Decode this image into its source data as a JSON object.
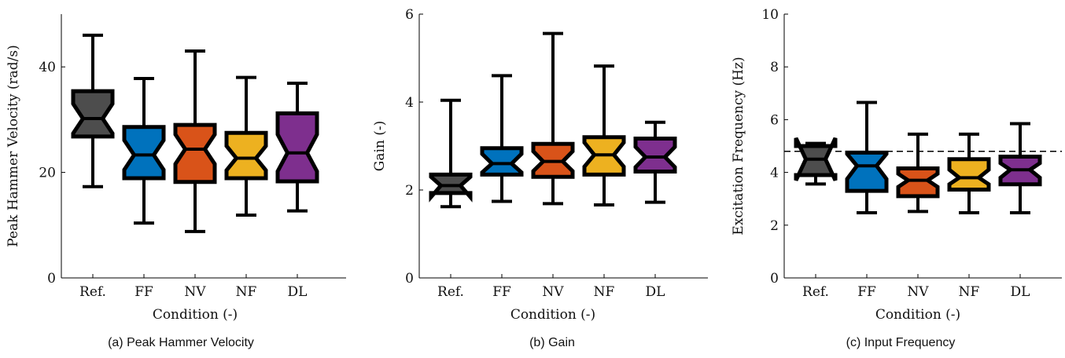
{
  "chart_data": [
    {
      "type": "box",
      "caption": "(a) Peak Hammer Velocity",
      "xlabel": "Condition (-)",
      "ylabel": "Peak Hammer Velocity (rad/s)",
      "ylim": [
        0,
        50
      ],
      "yticks": [
        0,
        20,
        40
      ],
      "categories": [
        "Ref.",
        "FF",
        "NV",
        "NF",
        "DL"
      ],
      "colors": [
        "#4d4d4d",
        "#0072bd",
        "#d95319",
        "#edb120",
        "#7e2f8e"
      ],
      "boxes": [
        {
          "whisker_low": 17.3,
          "q1": 26.8,
          "median": 30.2,
          "q3": 35.4,
          "whisker_high": 46.0,
          "notch_low": 27.4,
          "notch_high": 33.0
        },
        {
          "whisker_low": 10.4,
          "q1": 18.9,
          "median": 23.3,
          "q3": 28.6,
          "whisker_high": 37.8,
          "notch_low": 20.5,
          "notch_high": 26.1
        },
        {
          "whisker_low": 8.8,
          "q1": 18.2,
          "median": 24.4,
          "q3": 29.0,
          "whisker_high": 43.0,
          "notch_low": 21.6,
          "notch_high": 27.2
        },
        {
          "whisker_low": 11.9,
          "q1": 18.9,
          "median": 22.7,
          "q3": 27.5,
          "whisker_high": 38.0,
          "notch_low": 20.4,
          "notch_high": 25.0
        },
        {
          "whisker_low": 12.7,
          "q1": 18.3,
          "median": 23.7,
          "q3": 31.2,
          "whisker_high": 36.9,
          "notch_low": 20.2,
          "notch_high": 27.2
        }
      ],
      "reference_line": null
    },
    {
      "type": "box",
      "caption": "(b) Gain",
      "xlabel": "Condition (-)",
      "ylabel": "Gain (-)",
      "ylim": [
        0,
        6
      ],
      "yticks": [
        0,
        2,
        4,
        6
      ],
      "categories": [
        "Ref.",
        "FF",
        "NV",
        "NF",
        "DL"
      ],
      "colors": [
        "#4d4d4d",
        "#0072bd",
        "#d95319",
        "#edb120",
        "#7e2f8e"
      ],
      "boxes": [
        {
          "whisker_low": 1.62,
          "q1": 1.93,
          "median": 2.1,
          "q3": 2.35,
          "whisker_high": 4.04,
          "notch_low": 1.84,
          "notch_high": 2.3
        },
        {
          "whisker_low": 1.74,
          "q1": 2.35,
          "median": 2.6,
          "q3": 2.95,
          "whisker_high": 4.6,
          "notch_low": 2.4,
          "notch_high": 2.82
        },
        {
          "whisker_low": 1.69,
          "q1": 2.3,
          "median": 2.65,
          "q3": 3.05,
          "whisker_high": 5.56,
          "notch_low": 2.43,
          "notch_high": 2.88
        },
        {
          "whisker_low": 1.66,
          "q1": 2.35,
          "median": 2.8,
          "q3": 3.2,
          "whisker_high": 4.82,
          "notch_low": 2.53,
          "notch_high": 3.08
        },
        {
          "whisker_low": 1.72,
          "q1": 2.42,
          "median": 2.75,
          "q3": 3.17,
          "whisker_high": 3.54,
          "notch_low": 2.52,
          "notch_high": 2.98
        }
      ],
      "reference_line": null
    },
    {
      "type": "box",
      "caption": "(c) Input Frequency",
      "xlabel": "Condition (-)",
      "ylabel": "Excitation Frequency (Hz)",
      "ylim": [
        0,
        10
      ],
      "yticks": [
        0,
        2,
        4,
        6,
        8,
        10
      ],
      "categories": [
        "Ref.",
        "FF",
        "NV",
        "NF",
        "DL"
      ],
      "colors": [
        "#4d4d4d",
        "#0072bd",
        "#d95319",
        "#edb120",
        "#7e2f8e"
      ],
      "boxes": [
        {
          "whisker_low": 3.56,
          "q1": 3.9,
          "median": 4.5,
          "q3": 5.0,
          "whisker_high": 5.1,
          "notch_low": 3.7,
          "notch_high": 5.3
        },
        {
          "whisker_low": 2.47,
          "q1": 3.3,
          "median": 4.25,
          "q3": 4.75,
          "whisker_high": 6.65,
          "notch_low": 3.75,
          "notch_high": 4.7
        },
        {
          "whisker_low": 2.52,
          "q1": 3.1,
          "median": 3.7,
          "q3": 4.15,
          "whisker_high": 5.45,
          "notch_low": 3.45,
          "notch_high": 3.95
        },
        {
          "whisker_low": 2.47,
          "q1": 3.35,
          "median": 3.8,
          "q3": 4.5,
          "whisker_high": 5.45,
          "notch_low": 3.55,
          "notch_high": 4.1
        },
        {
          "whisker_low": 2.47,
          "q1": 3.55,
          "median": 4.1,
          "q3": 4.6,
          "whisker_high": 5.85,
          "notch_low": 3.8,
          "notch_high": 4.35
        }
      ],
      "reference_line": {
        "y": 4.8,
        "style": "dashed"
      }
    }
  ]
}
